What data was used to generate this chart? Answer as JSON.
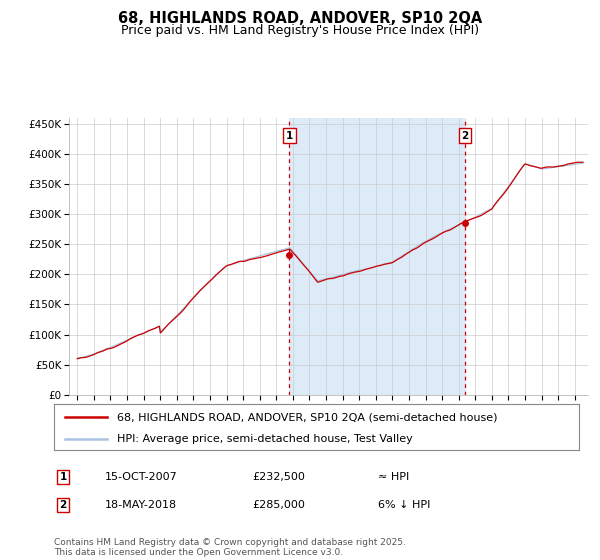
{
  "title": "68, HIGHLANDS ROAD, ANDOVER, SP10 2QA",
  "subtitle": "Price paid vs. HM Land Registry's House Price Index (HPI)",
  "ylabel_ticks": [
    "£0",
    "£50K",
    "£100K",
    "£150K",
    "£200K",
    "£250K",
    "£300K",
    "£350K",
    "£400K",
    "£450K"
  ],
  "ytick_values": [
    0,
    50000,
    100000,
    150000,
    200000,
    250000,
    300000,
    350000,
    400000,
    450000
  ],
  "ylim": [
    0,
    460000
  ],
  "sale1_date_num": 2007.79,
  "sale1_price": 232500,
  "sale2_date_num": 2018.38,
  "sale2_price": 285000,
  "hpi_line_color": "#a8c4e0",
  "price_line_color": "#cc0000",
  "vline_color": "#cc0000",
  "shading_color": "#ddeaf7",
  "background_color": "#ffffff",
  "grid_color": "#cccccc",
  "legend1": "68, HIGHLANDS ROAD, ANDOVER, SP10 2QA (semi-detached house)",
  "legend2": "HPI: Average price, semi-detached house, Test Valley",
  "table_row1": [
    "1",
    "15-OCT-2007",
    "£232,500",
    "≈ HPI"
  ],
  "table_row2": [
    "2",
    "18-MAY-2018",
    "£285,000",
    "6% ↓ HPI"
  ],
  "footnote": "Contains HM Land Registry data © Crown copyright and database right 2025.\nThis data is licensed under the Open Government Licence v3.0.",
  "title_fontsize": 10.5,
  "subtitle_fontsize": 9,
  "tick_fontsize": 7.5,
  "legend_fontsize": 8,
  "table_fontsize": 8,
  "footnote_fontsize": 6.5
}
